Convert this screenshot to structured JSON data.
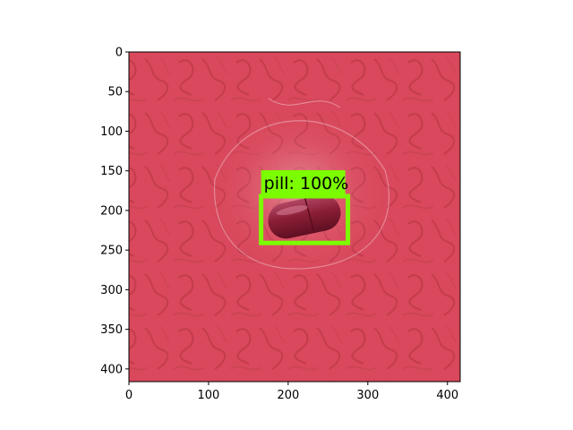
{
  "figure": {
    "x_ticks": [
      "0",
      "100",
      "200",
      "300",
      "400"
    ],
    "y_ticks": [
      "0",
      "50",
      "100",
      "150",
      "200",
      "250",
      "300",
      "350",
      "400"
    ],
    "x_tick_values": [
      0,
      100,
      200,
      300,
      400
    ],
    "y_tick_values": [
      0,
      50,
      100,
      150,
      200,
      250,
      300,
      350,
      400
    ],
    "image_extent": {
      "width": 416,
      "height": 416
    }
  },
  "scene": {
    "background_color": "#d9485c",
    "pattern_color": "#b8313f",
    "object": "pill-capsule",
    "capsule_color": "#8a1e36"
  },
  "detection": {
    "label": "pill: 100%",
    "box_color": "#7cfc00",
    "box": {
      "x_min": 166,
      "y_min": 182,
      "x_max": 275,
      "y_max": 241
    }
  }
}
